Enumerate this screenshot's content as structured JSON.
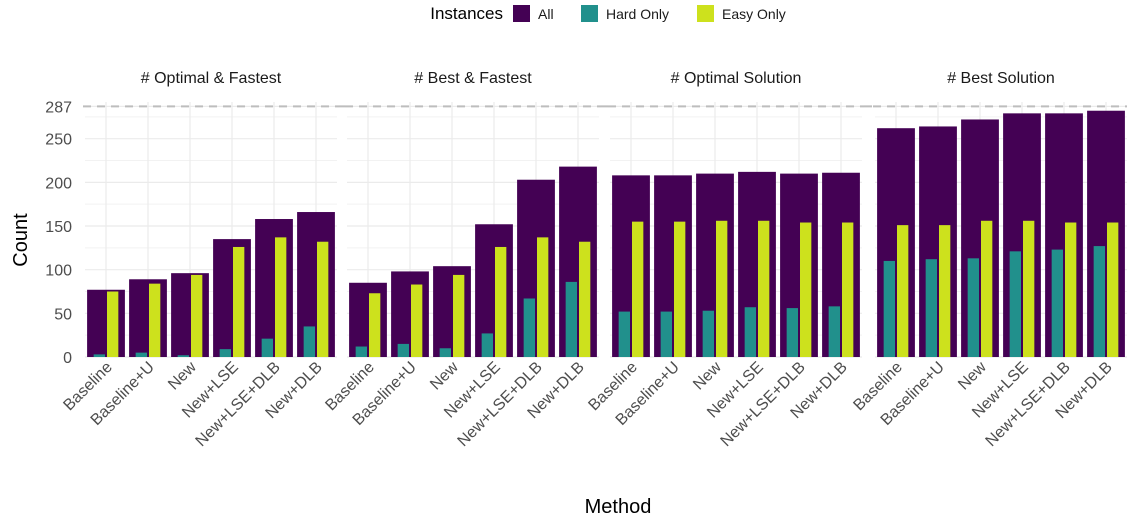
{
  "legend": {
    "title": "Instances",
    "entries": [
      {
        "key": "all",
        "label": "All",
        "color": "#440154"
      },
      {
        "key": "hard",
        "label": "Hard Only",
        "color": "#21908C"
      },
      {
        "key": "easy",
        "label": "Easy Only",
        "color": "#CDE11D"
      }
    ]
  },
  "chart_data": {
    "type": "bar",
    "xlabel": "Method",
    "ylabel": "Count",
    "ylim": [
      0,
      292
    ],
    "yticks": [
      0,
      50,
      100,
      150,
      200,
      250,
      287
    ],
    "reference_line": 287,
    "categories": [
      "Baseline",
      "Baseline+U",
      "New",
      "New+LSE",
      "New+LSE+DLB",
      "New+DLB"
    ],
    "panels": [
      {
        "title": "# Optimal & Fastest",
        "series": [
          {
            "name": "All",
            "values": [
              77,
              89,
              96,
              135,
              158,
              166
            ]
          },
          {
            "name": "Hard Only",
            "values": [
              3,
              5,
              2,
              9,
              21,
              35
            ]
          },
          {
            "name": "Easy Only",
            "values": [
              75,
              84,
              94,
              126,
              137,
              132
            ]
          }
        ]
      },
      {
        "title": "# Best & Fastest",
        "series": [
          {
            "name": "All",
            "values": [
              85,
              98,
              104,
              152,
              203,
              218
            ]
          },
          {
            "name": "Hard Only",
            "values": [
              12,
              15,
              10,
              27,
              67,
              86
            ]
          },
          {
            "name": "Easy Only",
            "values": [
              73,
              83,
              94,
              126,
              137,
              132
            ]
          }
        ]
      },
      {
        "title": "# Optimal Solution",
        "series": [
          {
            "name": "All",
            "values": [
              208,
              208,
              210,
              212,
              210,
              211
            ]
          },
          {
            "name": "Hard Only",
            "values": [
              52,
              52,
              53,
              57,
              56,
              58
            ]
          },
          {
            "name": "Easy Only",
            "values": [
              155,
              155,
              156,
              156,
              154,
              154
            ]
          }
        ]
      },
      {
        "title": "# Best Solution",
        "series": [
          {
            "name": "All",
            "values": [
              262,
              264,
              272,
              279,
              279,
              282
            ]
          },
          {
            "name": "Hard Only",
            "values": [
              110,
              112,
              113,
              121,
              123,
              127
            ]
          },
          {
            "name": "Easy Only",
            "values": [
              151,
              151,
              156,
              156,
              154,
              154
            ]
          }
        ]
      }
    ]
  }
}
